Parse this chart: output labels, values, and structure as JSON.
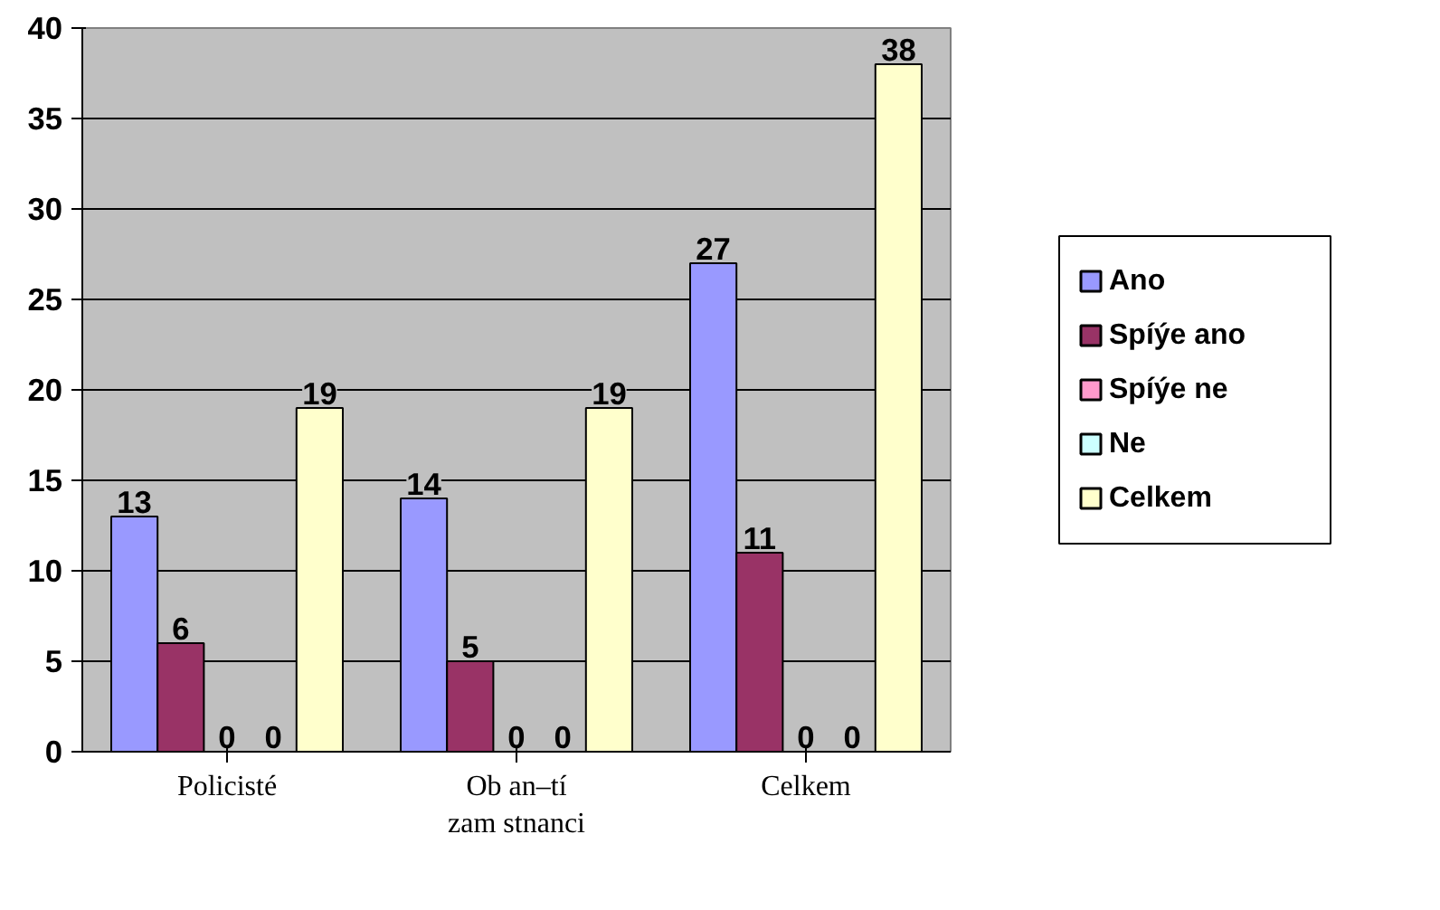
{
  "chart_data": {
    "type": "bar",
    "categories": [
      "Policisté",
      "Ob an–tí\nzam stnanci",
      "Celkem"
    ],
    "series": [
      {
        "name": "Ano",
        "color": "#9999ff",
        "values": [
          13,
          14,
          27
        ]
      },
      {
        "name": "Spíýe ano",
        "color": "#993366",
        "values": [
          6,
          5,
          11
        ]
      },
      {
        "name": "Spíýe ne",
        "color": "#ff99cc",
        "values": [
          0,
          0,
          0
        ]
      },
      {
        "name": "Ne",
        "color": "#ccffff",
        "values": [
          0,
          0,
          0
        ]
      },
      {
        "name": "Celkem",
        "color": "#ffffcc",
        "values": [
          19,
          19,
          38
        ]
      }
    ],
    "ylim": [
      0,
      40
    ],
    "yticks": [
      0,
      5,
      10,
      15,
      20,
      25,
      30,
      35,
      40
    ],
    "grid": "y",
    "legend": "right",
    "data_labels": true
  }
}
